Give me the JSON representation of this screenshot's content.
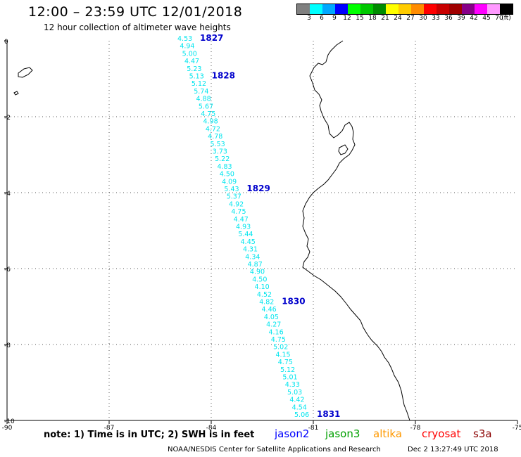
{
  "header": {
    "title": "12:00 – 23:59 UTC 12/01/2018",
    "subtitle": "12 hour collection of altimeter wave heights"
  },
  "legend": {
    "unit": "(ft)",
    "items": [
      {
        "label": "3",
        "color": "#808080"
      },
      {
        "label": "6",
        "color": "#00ffff"
      },
      {
        "label": "9",
        "color": "#00a8ff"
      },
      {
        "label": "12",
        "color": "#0000ff"
      },
      {
        "label": "15",
        "color": "#00ff00"
      },
      {
        "label": "18",
        "color": "#00c800"
      },
      {
        "label": "21",
        "color": "#008c00"
      },
      {
        "label": "24",
        "color": "#ffff00"
      },
      {
        "label": "27",
        "color": "#ffcc00"
      },
      {
        "label": "30",
        "color": "#ff8c00"
      },
      {
        "label": "33",
        "color": "#ff0000"
      },
      {
        "label": "36",
        "color": "#c80000"
      },
      {
        "label": "39",
        "color": "#a00000"
      },
      {
        "label": "42",
        "color": "#880088"
      },
      {
        "label": "45",
        "color": "#ff00ff"
      },
      {
        "label": "70",
        "color": "#ff99ff"
      },
      {
        "label": "",
        "color": "#000000"
      }
    ]
  },
  "map": {
    "lon_ticks": [
      "-90",
      "-87",
      "-84",
      "-81",
      "-78",
      "-75"
    ],
    "lat_ticks": [
      "0",
      "-2",
      "-4",
      "-6",
      "-8",
      "-10"
    ],
    "track_color": "#00e5ee",
    "time_color": "#0000cc",
    "wave_heights": [
      "4.53",
      "4.94",
      "5.00",
      "4.47",
      "5.23",
      "5.13",
      "5.12",
      "5.74",
      "4.88",
      "5.67",
      "4.75",
      "4.98",
      "4.72",
      "4.78",
      "5.53",
      "3.73",
      "5.22",
      "4.83",
      "4.50",
      "4.09",
      "5.43",
      "5.37",
      "4.92",
      "4.75",
      "4.47",
      "4.93",
      "5.44",
      "4.45",
      "4.31",
      "4.34",
      "4.87",
      "4.90",
      "4.50",
      "4.10",
      "4.52",
      "4.82",
      "4.46",
      "4.05",
      "4.27",
      "4.16",
      "4.75",
      "5.02",
      "4.15",
      "4.75",
      "5.12",
      "5.01",
      "4.33",
      "5.03",
      "4.42",
      "4.54",
      "5.06"
    ],
    "time_labels": [
      {
        "label": "1827",
        "index": 0
      },
      {
        "label": "1828",
        "index": 5
      },
      {
        "label": "1829",
        "index": 20
      },
      {
        "label": "1830",
        "index": 35
      },
      {
        "label": "1831",
        "index": 50
      }
    ]
  },
  "footer": {
    "note": "note:  1) Time is in UTC;  2) SWH is in feet",
    "satellites": [
      {
        "name": "jason2",
        "color": "#0000ff"
      },
      {
        "name": "jason3",
        "color": "#00a000"
      },
      {
        "name": "altika",
        "color": "#ff9900"
      },
      {
        "name": "cryosat",
        "color": "#ff0000"
      },
      {
        "name": "s3a",
        "color": "#8b0000"
      }
    ],
    "credit": "NOAA/NESDIS Center for Satellite Applications and Research",
    "timestamp": "Dec  2 13:27:49 UTC 2018"
  }
}
